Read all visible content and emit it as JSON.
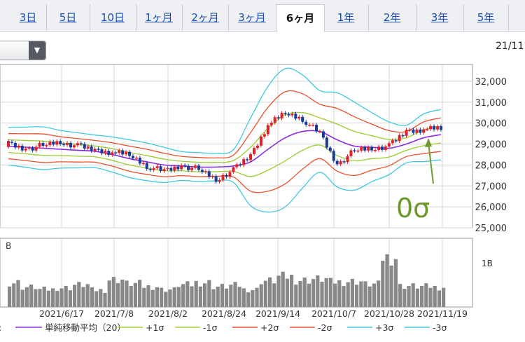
{
  "tabs": [
    "3日",
    "5日",
    "10日",
    "1ヶ月",
    "2ヶ月",
    "3ヶ月",
    "6ヶ月",
    "1年",
    "2年",
    "3年",
    "5年"
  ],
  "active_tab": "6ヶ月",
  "date_label": "21/11",
  "volume_label": "B",
  "volume_tick": "1B",
  "annotation": "0σ",
  "colors": {
    "sma": "#8a2be2",
    "p1": "#9acd32",
    "m1": "#9acd32",
    "p2": "#e8502a",
    "m2": "#e8502a",
    "p3": "#40c8e0",
    "m3": "#40c8e0",
    "up": "#e0202a",
    "down": "#1a3a9a",
    "volume": "#888888",
    "annotation": "#6b9a2a"
  },
  "chart_data": {
    "type": "line",
    "title": "",
    "y_ticks": [
      "32,000",
      "31,000",
      "30,000",
      "29,000",
      "28,000",
      "27,000",
      "26,000",
      "25,000"
    ],
    "ylim": [
      25000,
      32800
    ],
    "x_tick_labels": [
      "2021/6/17",
      "2021/7/8",
      "2021/8/2",
      "2021/8/24",
      "2021/9/14",
      "2021/10/7",
      "2021/10/28",
      "2021/11/19"
    ],
    "legend": [
      {
        "key": "sma",
        "label": "単純移動平均（20）"
      },
      {
        "key": "p1",
        "label": "+1σ"
      },
      {
        "key": "m1",
        "label": "-1σ"
      },
      {
        "key": "p2",
        "label": "+2σ"
      },
      {
        "key": "m2",
        "label": "-2σ"
      },
      {
        "key": "p3",
        "label": "+3σ"
      },
      {
        "key": "m3",
        "label": "-3σ"
      }
    ],
    "x": [
      "2021/5/27",
      "2021/6/3",
      "2021/6/10",
      "2021/6/17",
      "2021/6/24",
      "2021/7/1",
      "2021/7/8",
      "2021/7/15",
      "2021/7/22",
      "2021/7/29",
      "2021/8/5",
      "2021/8/12",
      "2021/8/19",
      "2021/8/24",
      "2021/9/1",
      "2021/9/8",
      "2021/9/14",
      "2021/9/21",
      "2021/9/28",
      "2021/10/7",
      "2021/10/14",
      "2021/10/21",
      "2021/10/28",
      "2021/11/4",
      "2021/11/11",
      "2021/11/19"
    ],
    "close": [
      29000,
      28750,
      28950,
      29100,
      28900,
      28700,
      28600,
      28500,
      27950,
      27700,
      27950,
      27800,
      27300,
      27750,
      28450,
      29900,
      30500,
      30200,
      29500,
      28000,
      28700,
      28800,
      28900,
      29600,
      29700,
      29750
    ],
    "sma": [
      28900,
      28850,
      28800,
      28750,
      28700,
      28650,
      28500,
      28300,
      28150,
      28000,
      27950,
      27900,
      27900,
      27950,
      28150,
      28750,
      29300,
      29600,
      29600,
      29200,
      28900,
      28850,
      28800,
      29000,
      29300,
      29450
    ],
    "std": [
      300,
      320,
      340,
      300,
      280,
      260,
      280,
      300,
      300,
      280,
      230,
      230,
      220,
      260,
      700,
      1000,
      1100,
      900,
      650,
      750,
      700,
      550,
      420,
      300,
      380,
      400
    ],
    "volume_levels": [
      0.42,
      0.34,
      0.3,
      0.33,
      0.38,
      0.29,
      0.47,
      0.4,
      0.35,
      0.3,
      0.38,
      0.42,
      0.35,
      0.37,
      0.3,
      0.45,
      0.52,
      0.46,
      0.48,
      0.43,
      0.44,
      0.39,
      0.85,
      0.36,
      0.35,
      0.34
    ],
    "volume_ylim": [
      0,
      1.2
    ]
  }
}
